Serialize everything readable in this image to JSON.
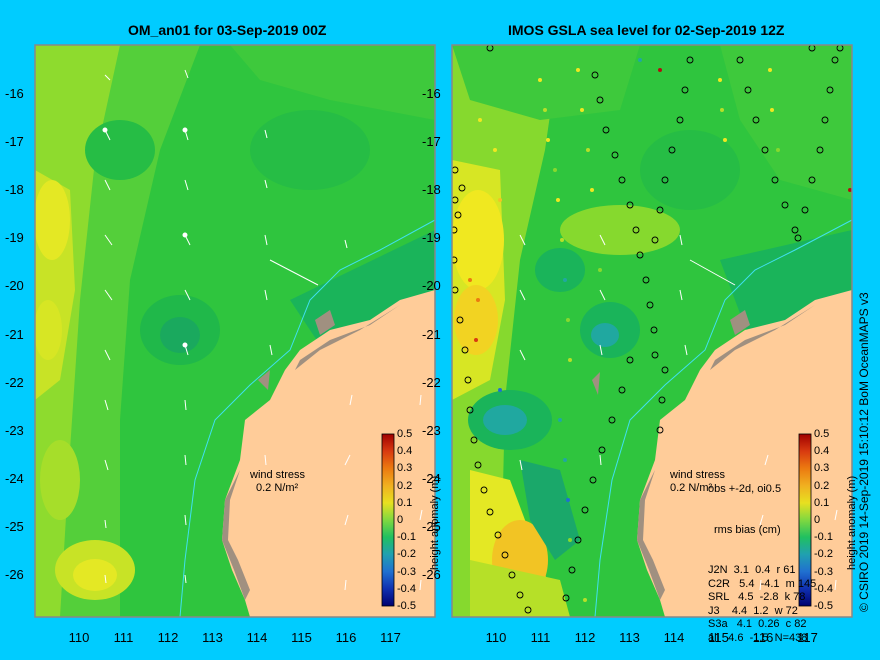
{
  "panels": [
    {
      "id": "left",
      "title": "OM_an01 for 03-Sep-2019 00Z",
      "colorbar_label": "height anomaly (m)",
      "wind_label_1": "wind stress",
      "wind_label_2": "0.2 N/m²"
    },
    {
      "id": "right",
      "title": "IMOS GSLA sea level  for 02-Sep-2019 12Z",
      "colorbar_label": "height anomaly (m)",
      "wind_label_1": "wind stress",
      "wind_label_2": "0.2 N/m²",
      "stats_header_1": "obs +-2d, oi0.5",
      "stats_header_2": "rms bias (cm)",
      "stats_rows": [
        "J2N  3.1  0.4  r 61",
        "C2R   5.4  -4.1  m 145",
        "SRL   4.5  -2.8  k 78",
        "J3    4.4  1.2  w 72",
        "S3a   4.1  0.26  c 82",
        "all   4.6  -1.5  N=438"
      ]
    }
  ],
  "axes": {
    "lon_ticks": [
      "110",
      "111",
      "112",
      "113",
      "114",
      "115",
      "116",
      "117"
    ],
    "lat_ticks": [
      "-16",
      "-17",
      "-18",
      "-19",
      "-20",
      "-21",
      "-22",
      "-23",
      "-24",
      "-25",
      "-26"
    ]
  },
  "colorbar": {
    "ticks": [
      "0.5",
      "0.4",
      "0.3",
      "0.2",
      "0.1",
      "0",
      "-0.1",
      "-0.2",
      "-0.3",
      "-0.4",
      "-0.5"
    ],
    "colors": [
      "#b01010",
      "#d83a10",
      "#ec7a10",
      "#f0b020",
      "#e8e020",
      "#b0e030",
      "#50d040",
      "#20c080",
      "#20a0c0",
      "#2060d0",
      "#1030a0",
      "#000080"
    ]
  },
  "credit": "© CSIRO 2019  14-Sep-2019 15:10:12 BoM OceanMAPS v3"
}
